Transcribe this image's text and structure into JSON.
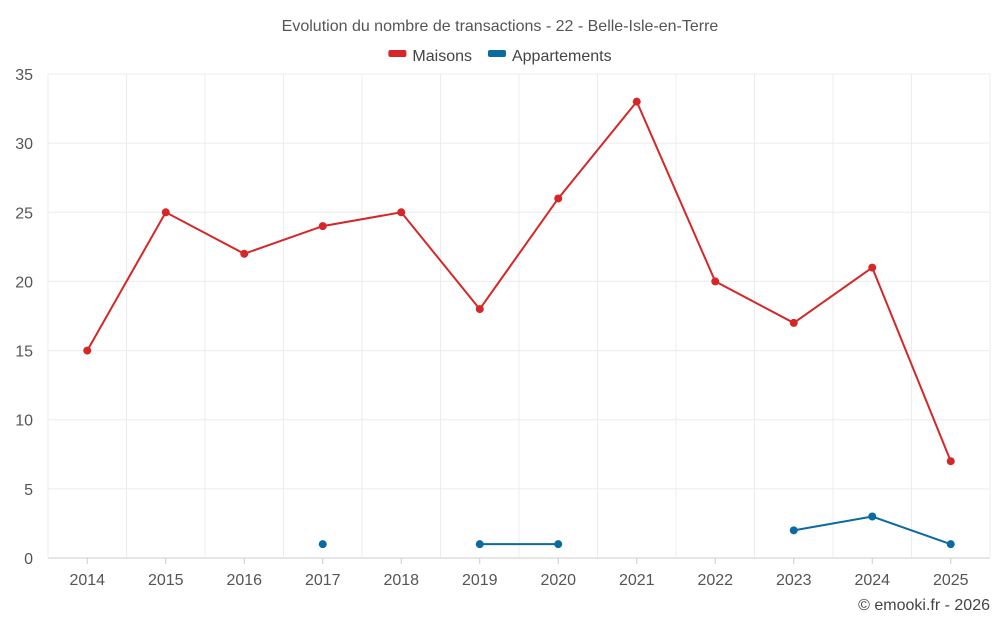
{
  "chart_data": {
    "type": "line",
    "title": "Evolution du nombre de transactions - 22 - Belle-Isle-en-Terre",
    "categories": [
      "2014",
      "2015",
      "2016",
      "2017",
      "2018",
      "2019",
      "2020",
      "2021",
      "2022",
      "2023",
      "2024",
      "2025"
    ],
    "series": [
      {
        "name": "Maisons",
        "color": "#d62728",
        "values": [
          15,
          25,
          22,
          24,
          25,
          18,
          26,
          33,
          20,
          17,
          21,
          7
        ]
      },
      {
        "name": "Appartements",
        "color": "#0a6aa1",
        "values": [
          null,
          null,
          null,
          1,
          null,
          1,
          1,
          null,
          null,
          2,
          3,
          1
        ]
      }
    ],
    "ylim": [
      0,
      35
    ],
    "yticks": [
      0,
      5,
      10,
      15,
      20,
      25,
      30,
      35
    ],
    "grid": true,
    "legend_position": "top-center",
    "xlabel": "",
    "ylabel": ""
  },
  "credit": "© emooki.fr - 2026"
}
